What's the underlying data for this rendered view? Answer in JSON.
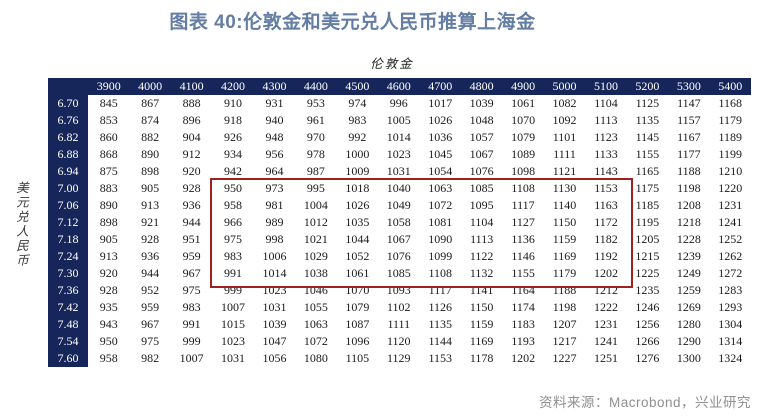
{
  "title": "图表 40:伦敦金和美元兑人民币推算上海金",
  "axis_labels": {
    "top": "伦敦金",
    "left_vertical": "美元兑人民币"
  },
  "source_note": "资料来源：Macrobond，兴业研究",
  "colors": {
    "header_navy": "#17265a",
    "title_blue": "#647da3",
    "highlight_red": "#a32020",
    "source_gray": "#8f8f8f",
    "value_text": "#1b1b1b"
  },
  "chart_data": {
    "type": "table",
    "title": "图表 40:伦敦金和美元兑人民币推算上海金",
    "x_axis_label": "伦敦金",
    "y_axis_label": "美元兑人民币",
    "columns": [
      "3900",
      "4000",
      "4100",
      "4200",
      "4300",
      "4400",
      "4500",
      "4600",
      "4700",
      "4800",
      "4900",
      "5000",
      "5100",
      "5200",
      "5300",
      "5400"
    ],
    "rows": [
      "6.70",
      "6.76",
      "6.82",
      "6.88",
      "6.94",
      "7.00",
      "7.06",
      "7.12",
      "7.18",
      "7.24",
      "7.30",
      "7.36",
      "7.42",
      "7.48",
      "7.54",
      "7.60"
    ],
    "values": [
      [
        845,
        867,
        888,
        910,
        931,
        953,
        974,
        996,
        1017,
        1039,
        1061,
        1082,
        1104,
        1125,
        1147,
        1168
      ],
      [
        853,
        874,
        896,
        918,
        940,
        961,
        983,
        1005,
        1026,
        1048,
        1070,
        1092,
        1113,
        1135,
        1157,
        1179
      ],
      [
        860,
        882,
        904,
        926,
        948,
        970,
        992,
        1014,
        1036,
        1057,
        1079,
        1101,
        1123,
        1145,
        1167,
        1189
      ],
      [
        868,
        890,
        912,
        934,
        956,
        978,
        1000,
        1023,
        1045,
        1067,
        1089,
        1111,
        1133,
        1155,
        1177,
        1199
      ],
      [
        875,
        898,
        920,
        942,
        964,
        987,
        1009,
        1031,
        1054,
        1076,
        1098,
        1121,
        1143,
        1165,
        1188,
        1210
      ],
      [
        883,
        905,
        928,
        950,
        973,
        995,
        1018,
        1040,
        1063,
        1085,
        1108,
        1130,
        1153,
        1175,
        1198,
        1220
      ],
      [
        890,
        913,
        936,
        958,
        981,
        1004,
        1026,
        1049,
        1072,
        1095,
        1117,
        1140,
        1163,
        1185,
        1208,
        1231
      ],
      [
        898,
        921,
        944,
        966,
        989,
        1012,
        1035,
        1058,
        1081,
        1104,
        1127,
        1150,
        1172,
        1195,
        1218,
        1241
      ],
      [
        905,
        928,
        951,
        975,
        998,
        1021,
        1044,
        1067,
        1090,
        1113,
        1136,
        1159,
        1182,
        1205,
        1228,
        1252
      ],
      [
        913,
        936,
        959,
        983,
        1006,
        1029,
        1052,
        1076,
        1099,
        1122,
        1146,
        1169,
        1192,
        1215,
        1239,
        1262
      ],
      [
        920,
        944,
        967,
        991,
        1014,
        1038,
        1061,
        1085,
        1108,
        1132,
        1155,
        1179,
        1202,
        1225,
        1249,
        1272
      ],
      [
        928,
        952,
        975,
        999,
        1023,
        1046,
        1070,
        1093,
        1117,
        1141,
        1164,
        1188,
        1212,
        1235,
        1259,
        1283
      ],
      [
        935,
        959,
        983,
        1007,
        1031,
        1055,
        1079,
        1102,
        1126,
        1150,
        1174,
        1198,
        1222,
        1246,
        1269,
        1293
      ],
      [
        943,
        967,
        991,
        1015,
        1039,
        1063,
        1087,
        1111,
        1135,
        1159,
        1183,
        1207,
        1231,
        1256,
        1280,
        1304
      ],
      [
        950,
        975,
        999,
        1023,
        1047,
        1072,
        1096,
        1120,
        1144,
        1169,
        1193,
        1217,
        1241,
        1266,
        1290,
        1314
      ],
      [
        958,
        982,
        1007,
        1031,
        1056,
        1080,
        1105,
        1129,
        1153,
        1178,
        1202,
        1227,
        1251,
        1276,
        1300,
        1324
      ]
    ],
    "highlight": {
      "row_start": "7.00",
      "row_end": "7.30",
      "col_start": "4200",
      "col_end": "5100"
    },
    "legend": "none",
    "grid": "off"
  }
}
